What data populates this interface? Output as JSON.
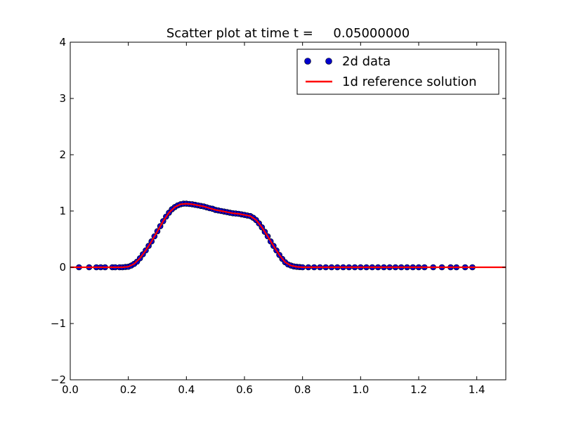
{
  "chart_data": {
    "type": "scatter",
    "title": "Scatter plot at time t =     0.05000000",
    "xlabel": "",
    "ylabel": "",
    "xlim": [
      0.0,
      1.5
    ],
    "ylim": [
      -2,
      4
    ],
    "xticks": [
      "0.0",
      "0.2",
      "0.4",
      "0.6",
      "0.8",
      "1.0",
      "1.2",
      "1.4"
    ],
    "yticks": [
      "−2",
      "−1",
      "0",
      "1",
      "2",
      "3",
      "4"
    ],
    "grid": false,
    "legend": "top-right",
    "series": [
      {
        "name": "2d data",
        "kind": "scatter",
        "color": "#0000cc",
        "x": [
          0.03,
          0.065,
          0.09,
          0.105,
          0.12,
          0.145,
          0.155,
          0.17,
          0.18,
          0.19,
          0.2,
          0.21,
          0.22,
          0.23,
          0.24,
          0.25,
          0.26,
          0.27,
          0.28,
          0.29,
          0.3,
          0.31,
          0.32,
          0.33,
          0.34,
          0.35,
          0.36,
          0.37,
          0.38,
          0.39,
          0.4,
          0.41,
          0.42,
          0.43,
          0.44,
          0.45,
          0.46,
          0.47,
          0.48,
          0.49,
          0.5,
          0.51,
          0.52,
          0.53,
          0.54,
          0.55,
          0.56,
          0.57,
          0.58,
          0.59,
          0.6,
          0.61,
          0.62,
          0.63,
          0.64,
          0.65,
          0.66,
          0.67,
          0.68,
          0.69,
          0.7,
          0.71,
          0.72,
          0.73,
          0.74,
          0.75,
          0.76,
          0.77,
          0.78,
          0.79,
          0.8,
          0.82,
          0.84,
          0.86,
          0.88,
          0.9,
          0.92,
          0.94,
          0.96,
          0.98,
          1.0,
          1.02,
          1.04,
          1.06,
          1.08,
          1.1,
          1.12,
          1.14,
          1.16,
          1.18,
          1.2,
          1.22,
          1.25,
          1.28,
          1.31,
          1.33,
          1.36,
          1.385
        ],
        "y": [
          0.0,
          0.0,
          0.0,
          0.0,
          0.0,
          0.0,
          0.0,
          0.0,
          0.0,
          0.005,
          0.01,
          0.03,
          0.06,
          0.1,
          0.16,
          0.23,
          0.3,
          0.38,
          0.46,
          0.55,
          0.64,
          0.73,
          0.82,
          0.9,
          0.97,
          1.03,
          1.07,
          1.1,
          1.12,
          1.13,
          1.13,
          1.125,
          1.12,
          1.11,
          1.1,
          1.09,
          1.08,
          1.065,
          1.05,
          1.04,
          1.02,
          1.01,
          1.0,
          0.99,
          0.98,
          0.97,
          0.96,
          0.955,
          0.95,
          0.94,
          0.93,
          0.92,
          0.91,
          0.88,
          0.84,
          0.78,
          0.71,
          0.63,
          0.55,
          0.46,
          0.38,
          0.3,
          0.22,
          0.15,
          0.09,
          0.05,
          0.03,
          0.015,
          0.008,
          0.004,
          0.0,
          0.0,
          0.0,
          0.0,
          0.0,
          0.0,
          0.0,
          0.0,
          0.0,
          0.0,
          0.0,
          0.0,
          0.0,
          0.0,
          0.0,
          0.0,
          0.0,
          0.0,
          0.0,
          0.0,
          0.0,
          0.0,
          0.0,
          0.0,
          0.0,
          0.0,
          0.0,
          0.0
        ]
      },
      {
        "name": "1d reference solution",
        "kind": "line",
        "color": "#ff0000",
        "x": [
          0.0,
          0.1,
          0.18,
          0.2,
          0.22,
          0.24,
          0.26,
          0.28,
          0.3,
          0.32,
          0.34,
          0.36,
          0.38,
          0.4,
          0.42,
          0.44,
          0.46,
          0.48,
          0.5,
          0.52,
          0.54,
          0.56,
          0.58,
          0.6,
          0.62,
          0.64,
          0.66,
          0.68,
          0.7,
          0.72,
          0.74,
          0.76,
          0.78,
          0.8,
          0.85,
          1.0,
          1.2,
          1.5
        ],
        "y": [
          0.0,
          0.0,
          0.0,
          0.01,
          0.06,
          0.16,
          0.3,
          0.46,
          0.64,
          0.82,
          0.97,
          1.07,
          1.12,
          1.13,
          1.12,
          1.1,
          1.08,
          1.05,
          1.02,
          1.0,
          0.98,
          0.96,
          0.95,
          0.93,
          0.91,
          0.84,
          0.71,
          0.55,
          0.38,
          0.22,
          0.09,
          0.03,
          0.008,
          0.0,
          0.0,
          0.0,
          0.0,
          0.0
        ]
      }
    ]
  }
}
